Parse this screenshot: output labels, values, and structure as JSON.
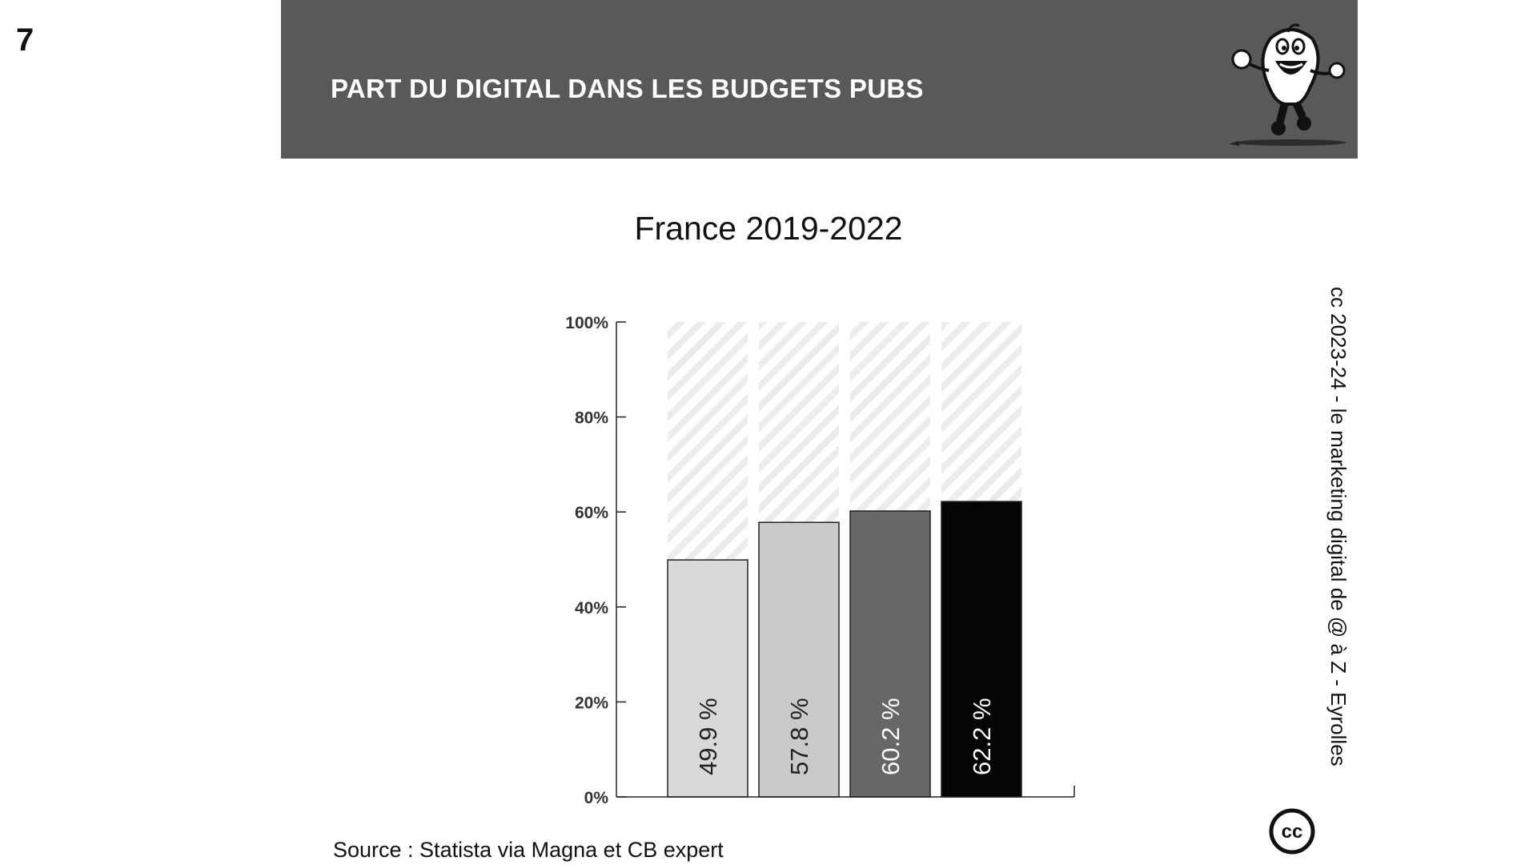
{
  "page": {
    "number": "7"
  },
  "header": {
    "title": "PART DU DIGITAL DANS LES BUDGETS PUBS"
  },
  "chart_data": {
    "type": "bar",
    "title": "France 2019-2022",
    "categories": [
      "",
      "",
      "",
      ""
    ],
    "values": [
      49.9,
      57.8,
      60.2,
      62.2
    ],
    "data_labels": [
      "49.9 %",
      "57.8 %",
      "60.2 %",
      "62.2 %"
    ],
    "bar_colors": [
      "#d9d9d9",
      "#cbcacb",
      "#676767",
      "#050506"
    ],
    "label_colors": [
      "#222222",
      "#222222",
      "#ffffff",
      "#ffffff"
    ],
    "background_to_100": true,
    "background_pattern": "diagonal-stripes",
    "y_ticks": [
      "0%",
      "20%",
      "40%",
      "60%",
      "80%",
      "100%"
    ],
    "y_tick_values": [
      0,
      20,
      40,
      60,
      80,
      100
    ],
    "ylim": [
      0,
      100
    ],
    "xlabel": "",
    "ylabel": "",
    "grid": false,
    "legend": "none"
  },
  "footer": {
    "source": "Source : Statista via Magna et CB expert",
    "credit": "cc 2023-24  - le marketing digital de @ à Z - Eyrolles",
    "cc_logo_text": "cc"
  },
  "colors": {
    "banner": "#5a5859",
    "banner_text": "#ffffff"
  },
  "icons": {
    "mascot": "running-tooth-mascot-icon",
    "license": "creative-commons-icon"
  }
}
